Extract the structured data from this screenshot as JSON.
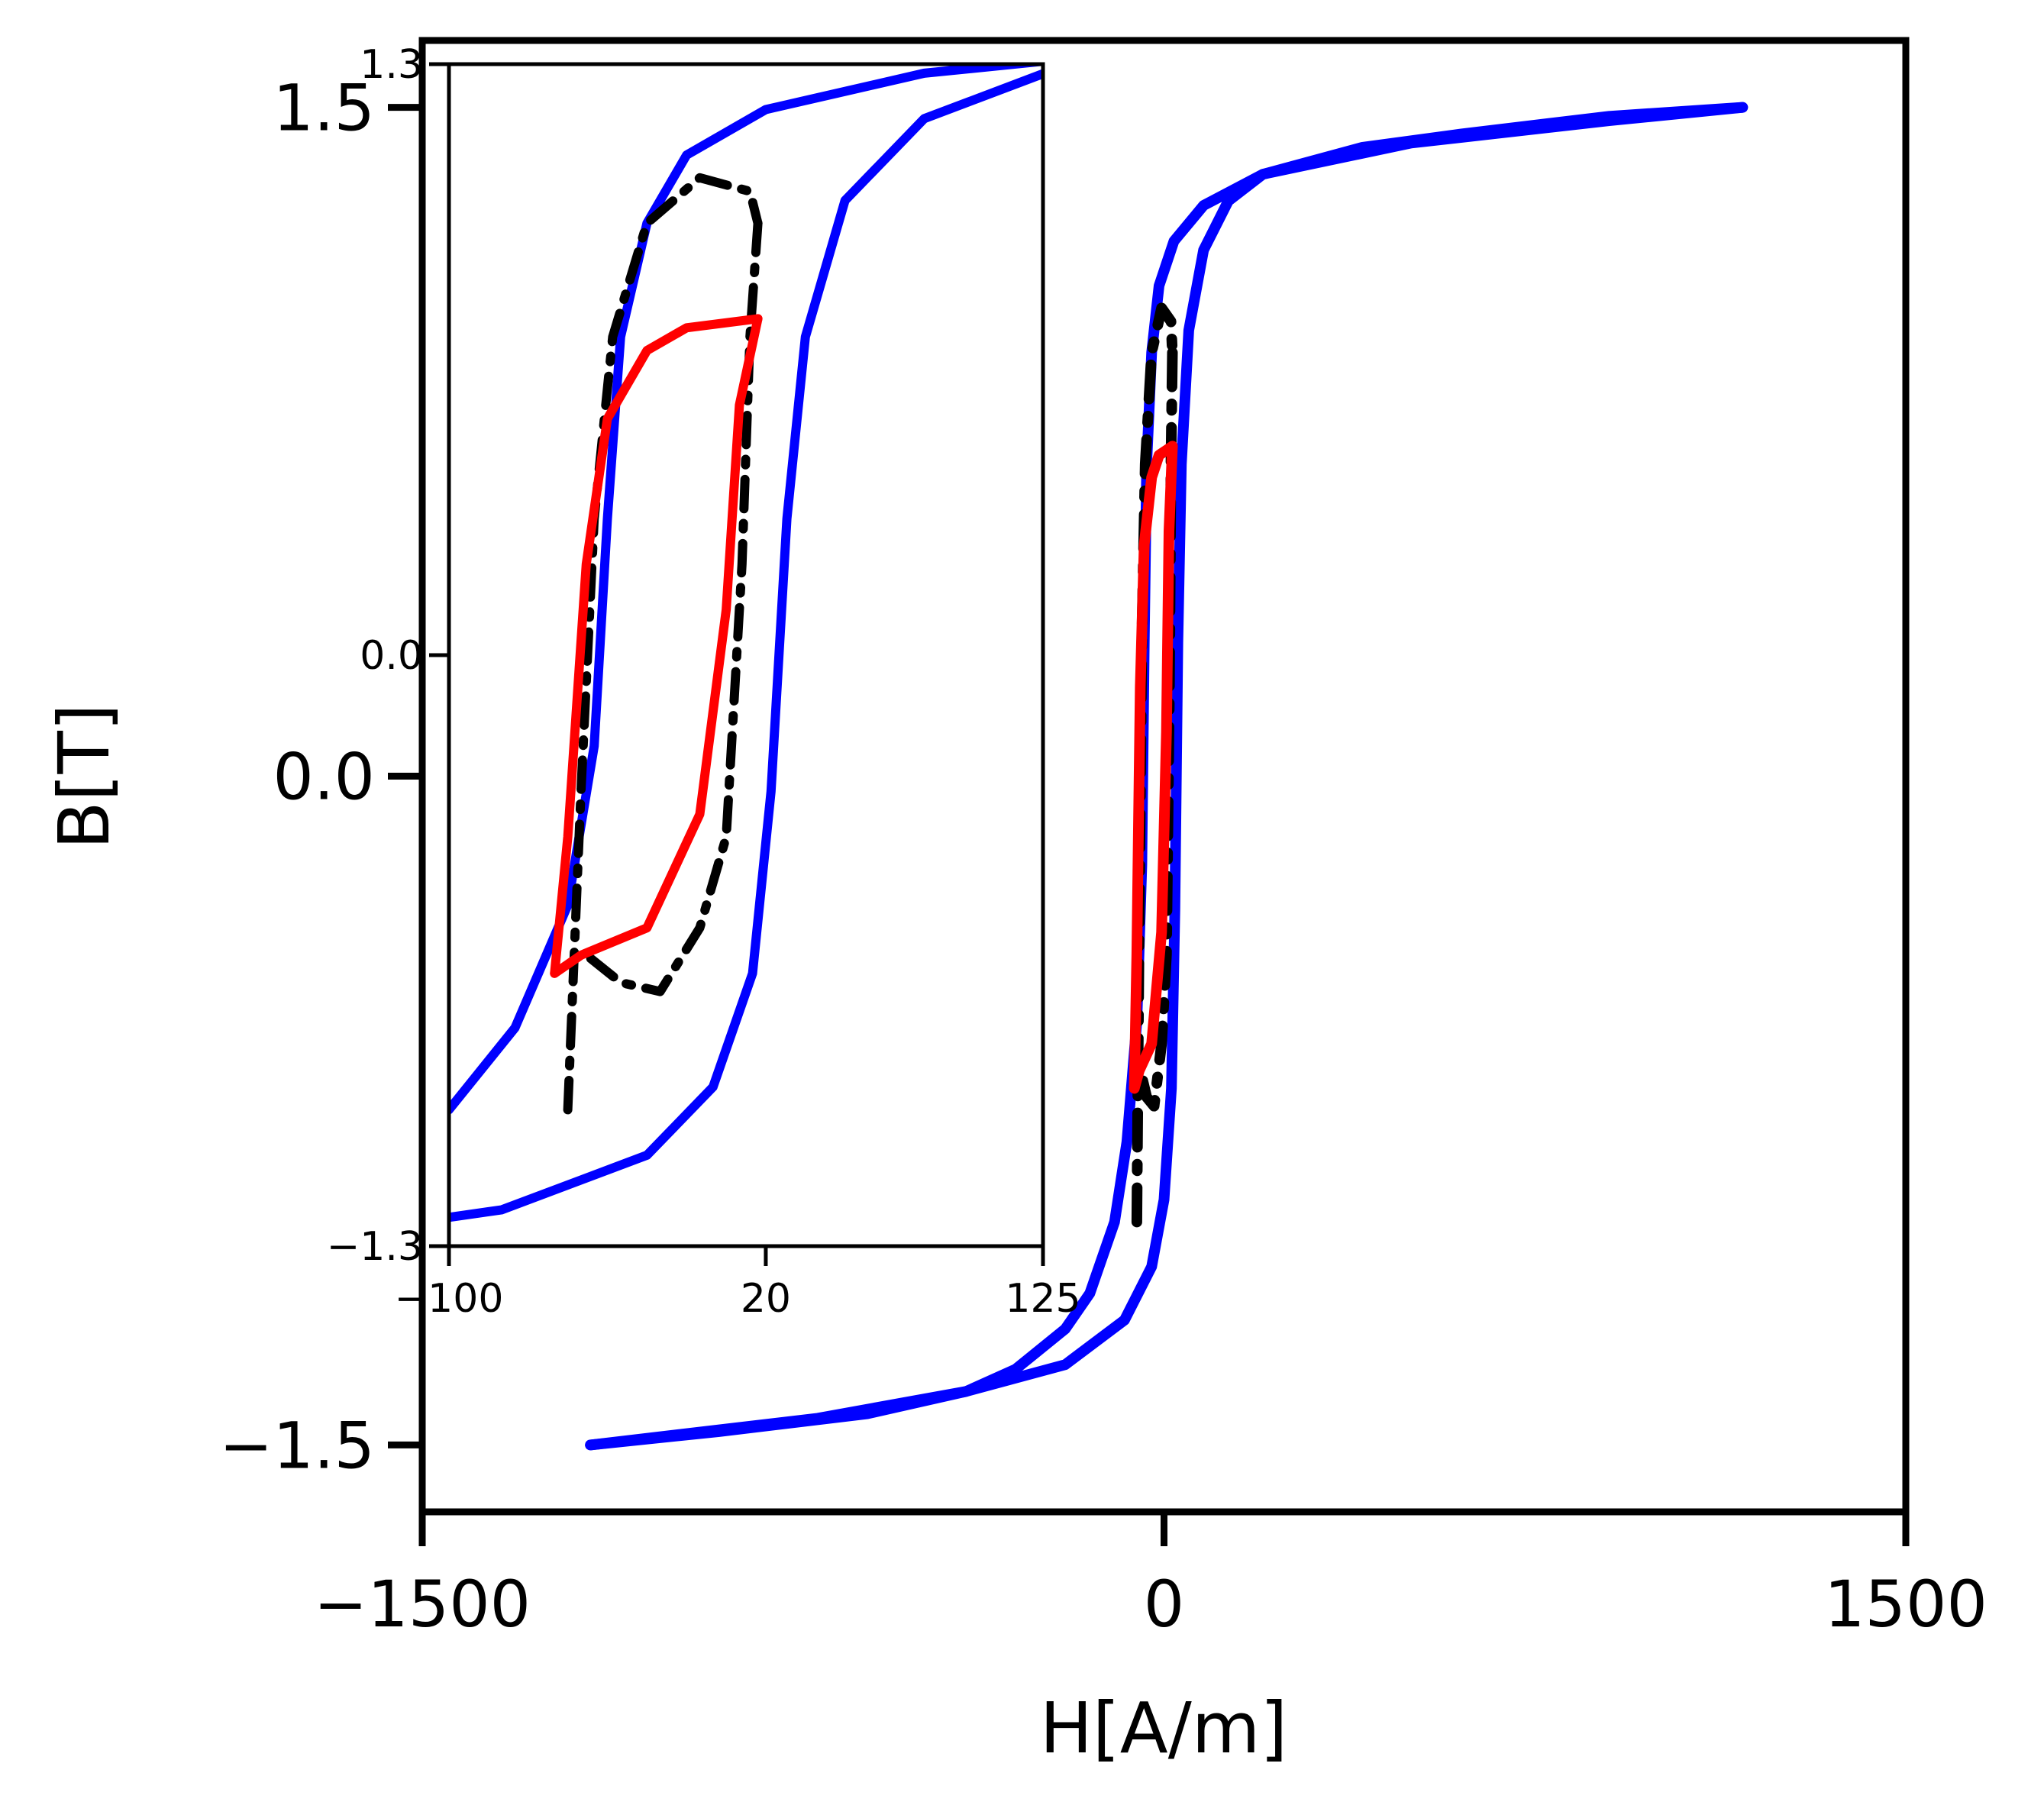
{
  "chart_data": {
    "type": "line",
    "xlabel": "H[A/m]",
    "ylabel": "B[T]",
    "xlim": [
      -1500,
      1500
    ],
    "ylim": [
      -1.65,
      1.65
    ],
    "xticks": [
      {
        "value": -1500,
        "label": "−1500"
      },
      {
        "value": 0,
        "label": "0"
      },
      {
        "value": 1500,
        "label": "1500"
      }
    ],
    "yticks": [
      {
        "value": 1.5,
        "label": "1.5"
      },
      {
        "value": 0,
        "label": "0.0"
      },
      {
        "value": -1.5,
        "label": "−1.5"
      }
    ],
    "grid": false,
    "series": [
      {
        "kind": "major-loop",
        "color": "#0000ff",
        "style": "solid",
        "upper_branch": [
          [
            -1160,
            -1.5
          ],
          [
            -900,
            -1.47
          ],
          [
            -600,
            -1.43
          ],
          [
            -400,
            -1.38
          ],
          [
            -300,
            -1.33
          ],
          [
            -200,
            -1.24
          ],
          [
            -150,
            -1.16
          ],
          [
            -100,
            -1.0
          ],
          [
            -75,
            -0.82
          ],
          [
            -55,
            -0.55
          ],
          [
            -45,
            -0.2
          ],
          [
            -40,
            0.3
          ],
          [
            -35,
            0.7
          ],
          [
            -25,
            0.95
          ],
          [
            -10,
            1.1
          ],
          [
            20,
            1.2
          ],
          [
            80,
            1.28
          ],
          [
            200,
            1.35
          ],
          [
            500,
            1.42
          ],
          [
            900,
            1.47
          ],
          [
            1170,
            1.5
          ]
        ],
        "lower_branch": [
          [
            1170,
            1.5
          ],
          [
            900,
            1.48
          ],
          [
            600,
            1.44
          ],
          [
            400,
            1.41
          ],
          [
            200,
            1.35
          ],
          [
            130,
            1.29
          ],
          [
            80,
            1.18
          ],
          [
            50,
            1.0
          ],
          [
            35,
            0.7
          ],
          [
            28,
            0.3
          ],
          [
            22,
            -0.3
          ],
          [
            15,
            -0.7
          ],
          [
            0,
            -0.95
          ],
          [
            -25,
            -1.1
          ],
          [
            -80,
            -1.22
          ],
          [
            -200,
            -1.32
          ],
          [
            -400,
            -1.38
          ],
          [
            -700,
            -1.44
          ],
          [
            -1160,
            -1.5
          ]
        ]
      },
      {
        "kind": "minor-loop",
        "color": "#000000",
        "style": "dash-dot",
        "upper_branch": [
          [
            -55,
            -1.0
          ],
          [
            -50,
            -0.3
          ],
          [
            -45,
            0.3
          ],
          [
            -38,
            0.7
          ],
          [
            -25,
            0.95
          ],
          [
            -5,
            1.05
          ],
          [
            14,
            1.02
          ],
          [
            17,
            0.95
          ]
        ],
        "lower_branch": [
          [
            17,
            0.95
          ],
          [
            14,
            0.7
          ],
          [
            11,
            0.2
          ],
          [
            5,
            -0.4
          ],
          [
            -5,
            -0.6
          ],
          [
            -20,
            -0.74
          ],
          [
            -35,
            -0.72
          ],
          [
            -50,
            -0.65
          ]
        ]
      },
      {
        "kind": "minor-loop",
        "color": "#ff0000",
        "style": "solid",
        "upper_branch": [
          [
            -60,
            -0.7
          ],
          [
            -55,
            -0.4
          ],
          [
            -48,
            0.2
          ],
          [
            -40,
            0.52
          ],
          [
            -25,
            0.67
          ],
          [
            -10,
            0.72
          ],
          [
            17,
            0.74
          ]
        ],
        "lower_branch": [
          [
            17,
            0.74
          ],
          [
            10,
            0.55
          ],
          [
            5,
            0.1
          ],
          [
            -5,
            -0.35
          ],
          [
            -25,
            -0.6
          ],
          [
            -50,
            -0.66
          ],
          [
            -60,
            -0.7
          ]
        ]
      }
    ],
    "inset": {
      "xlim": [
        -100,
        125
      ],
      "ylim": [
        -1.3,
        1.3
      ],
      "xticks": [
        {
          "value": -100,
          "label": "−100"
        },
        {
          "value": 20,
          "label": "20"
        },
        {
          "value": 125,
          "label": "125"
        }
      ],
      "yticks": [
        {
          "value": 1.3,
          "label": "1.3"
        },
        {
          "value": 0,
          "label": "0.0"
        },
        {
          "value": -1.3,
          "label": "−1.3"
        }
      ]
    }
  }
}
